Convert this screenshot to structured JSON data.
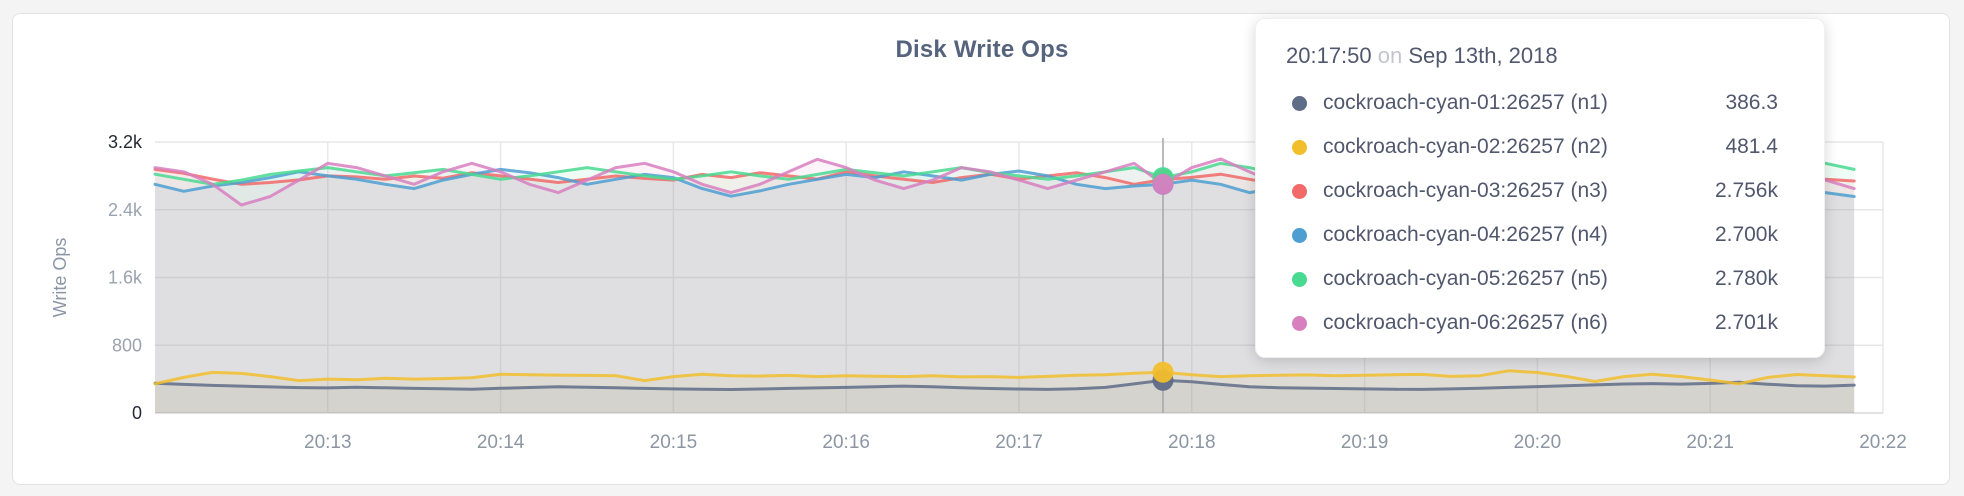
{
  "chart_data": {
    "type": "area",
    "title": "Disk Write Ops",
    "ylabel": "Write Ops",
    "ylim": [
      0,
      3200
    ],
    "grid": true,
    "legend_position": "tooltip",
    "x_domain_seconds": 600,
    "x_domain_start": "20:12:00",
    "sample_interval_seconds": 10,
    "x_ticks": [
      {
        "label": "20:13",
        "seconds": 60
      },
      {
        "label": "20:14",
        "seconds": 120
      },
      {
        "label": "20:15",
        "seconds": 180
      },
      {
        "label": "20:16",
        "seconds": 240
      },
      {
        "label": "20:17",
        "seconds": 300
      },
      {
        "label": "20:18",
        "seconds": 360
      },
      {
        "label": "20:19",
        "seconds": 420
      },
      {
        "label": "20:20",
        "seconds": 480
      },
      {
        "label": "20:21",
        "seconds": 540
      },
      {
        "label": "20:22",
        "seconds": 600
      }
    ],
    "y_ticks": [
      {
        "label": "0",
        "value": 0,
        "emph": true
      },
      {
        "label": "800",
        "value": 800,
        "emph": false
      },
      {
        "label": "1.6k",
        "value": 1600,
        "emph": false
      },
      {
        "label": "2.4k",
        "value": 2400,
        "emph": false
      },
      {
        "label": "3.2k",
        "value": 3200,
        "emph": true
      }
    ],
    "series": [
      {
        "name": "cockroach-cyan-01:26257 (n1)",
        "color": "#5F6C87",
        "values": [
          352,
          338,
          326,
          318,
          308,
          300,
          296,
          304,
          298,
          290,
          286,
          281,
          292,
          301,
          310,
          304,
          297,
          290,
          284,
          280,
          278,
          283,
          291,
          296,
          302,
          311,
          318,
          309,
          299,
          289,
          283,
          279,
          286,
          302,
          344,
          386.3,
          368,
          338,
          310,
          299,
          294,
          289,
          284,
          280,
          279,
          284,
          292,
          302,
          312,
          322,
          332,
          342,
          347,
          341,
          350,
          362,
          340,
          322,
          318,
          330
        ]
      },
      {
        "name": "cockroach-cyan-02:26257 (n2)",
        "color": "#F2BE2C",
        "values": [
          345,
          420,
          480,
          468,
          430,
          382,
          400,
          392,
          410,
          400,
          406,
          416,
          458,
          452,
          448,
          444,
          440,
          382,
          430,
          458,
          440,
          436,
          444,
          430,
          440,
          434,
          430,
          440,
          426,
          430,
          420,
          432,
          446,
          452,
          470,
          481.4,
          452,
          430,
          440,
          446,
          450,
          440,
          446,
          452,
          456,
          432,
          440,
          498,
          478,
          432,
          372,
          430,
          458,
          430,
          390,
          345,
          420,
          455,
          440,
          425
        ]
      },
      {
        "name": "cockroach-cyan-03:26257 (n3)",
        "color": "#F16969",
        "values": [
          2876,
          2830,
          2762,
          2700,
          2722,
          2752,
          2800,
          2788,
          2760,
          2798,
          2772,
          2838,
          2800,
          2762,
          2722,
          2760,
          2798,
          2770,
          2750,
          2818,
          2780,
          2838,
          2800,
          2762,
          2848,
          2800,
          2760,
          2722,
          2780,
          2820,
          2762,
          2800,
          2838,
          2780,
          2700,
          2756,
          2782,
          2820,
          2760,
          2702,
          2740,
          2780,
          2818,
          2780,
          2750,
          2798,
          2760,
          2722,
          2780,
          2896,
          2800,
          2762,
          2798,
          2760,
          2722,
          2760,
          2798,
          2780,
          2760,
          2740
        ]
      },
      {
        "name": "cockroach-cyan-04:26257 (n4)",
        "color": "#4E9FD1",
        "values": [
          2700,
          2618,
          2680,
          2722,
          2780,
          2848,
          2800,
          2760,
          2700,
          2650,
          2750,
          2818,
          2876,
          2838,
          2780,
          2700,
          2760,
          2818,
          2780,
          2650,
          2560,
          2622,
          2700,
          2760,
          2818,
          2780,
          2848,
          2800,
          2750,
          2818,
          2858,
          2800,
          2700,
          2650,
          2680,
          2700,
          2750,
          2700,
          2602,
          2660,
          2700,
          2760,
          2800,
          2838,
          2780,
          2700,
          2660,
          2700,
          2740,
          2700,
          2722,
          2760,
          2700,
          2650,
          2602,
          2650,
          2700,
          2680,
          2602,
          2556
        ]
      },
      {
        "name": "cockroach-cyan-05:26257 (n5)",
        "color": "#49D990",
        "values": [
          2820,
          2760,
          2700,
          2750,
          2818,
          2858,
          2898,
          2848,
          2800,
          2838,
          2876,
          2818,
          2760,
          2800,
          2848,
          2898,
          2848,
          2800,
          2760,
          2800,
          2848,
          2800,
          2760,
          2818,
          2876,
          2838,
          2800,
          2848,
          2898,
          2838,
          2800,
          2760,
          2800,
          2848,
          2898,
          2780,
          2848,
          2948,
          2898,
          2818,
          2780,
          2818,
          2858,
          2898,
          2848,
          2800,
          2838,
          2876,
          2818,
          2780,
          2848,
          2898,
          2848,
          2948,
          2848,
          2700,
          2800,
          2898,
          2948,
          2876
        ]
      },
      {
        "name": "cockroach-cyan-06:26257 (n6)",
        "color": "#D77FBF",
        "values": [
          2898,
          2848,
          2700,
          2456,
          2556,
          2750,
          2948,
          2898,
          2800,
          2700,
          2848,
          2948,
          2848,
          2700,
          2602,
          2750,
          2898,
          2948,
          2848,
          2700,
          2602,
          2700,
          2848,
          2996,
          2898,
          2750,
          2650,
          2750,
          2898,
          2848,
          2750,
          2650,
          2750,
          2848,
          2948,
          2701,
          2898,
          3000,
          2848,
          2700,
          2750,
          2848,
          2898,
          2800,
          2700,
          2750,
          2848,
          2800,
          2700,
          2650,
          2750,
          2898,
          3048,
          2848,
          2700,
          2650,
          2602,
          2700,
          2750,
          2650
        ]
      }
    ]
  },
  "tooltip": {
    "time": "20:17:50",
    "conjunction": "on",
    "date": "Sep 13th, 2018",
    "hover_index": 35,
    "rows": [
      {
        "name": "cockroach-cyan-01:26257 (n1)",
        "value": "386.3",
        "color": "#5F6C87"
      },
      {
        "name": "cockroach-cyan-02:26257 (n2)",
        "value": "481.4",
        "color": "#F2BE2C"
      },
      {
        "name": "cockroach-cyan-03:26257 (n3)",
        "value": "2.756k",
        "color": "#F16969"
      },
      {
        "name": "cockroach-cyan-04:26257 (n4)",
        "value": "2.700k",
        "color": "#4E9FD1"
      },
      {
        "name": "cockroach-cyan-05:26257 (n5)",
        "value": "2.780k",
        "color": "#49D990"
      },
      {
        "name": "cockroach-cyan-06:26257 (n6)",
        "value": "2.701k",
        "color": "#D77FBF"
      }
    ]
  }
}
